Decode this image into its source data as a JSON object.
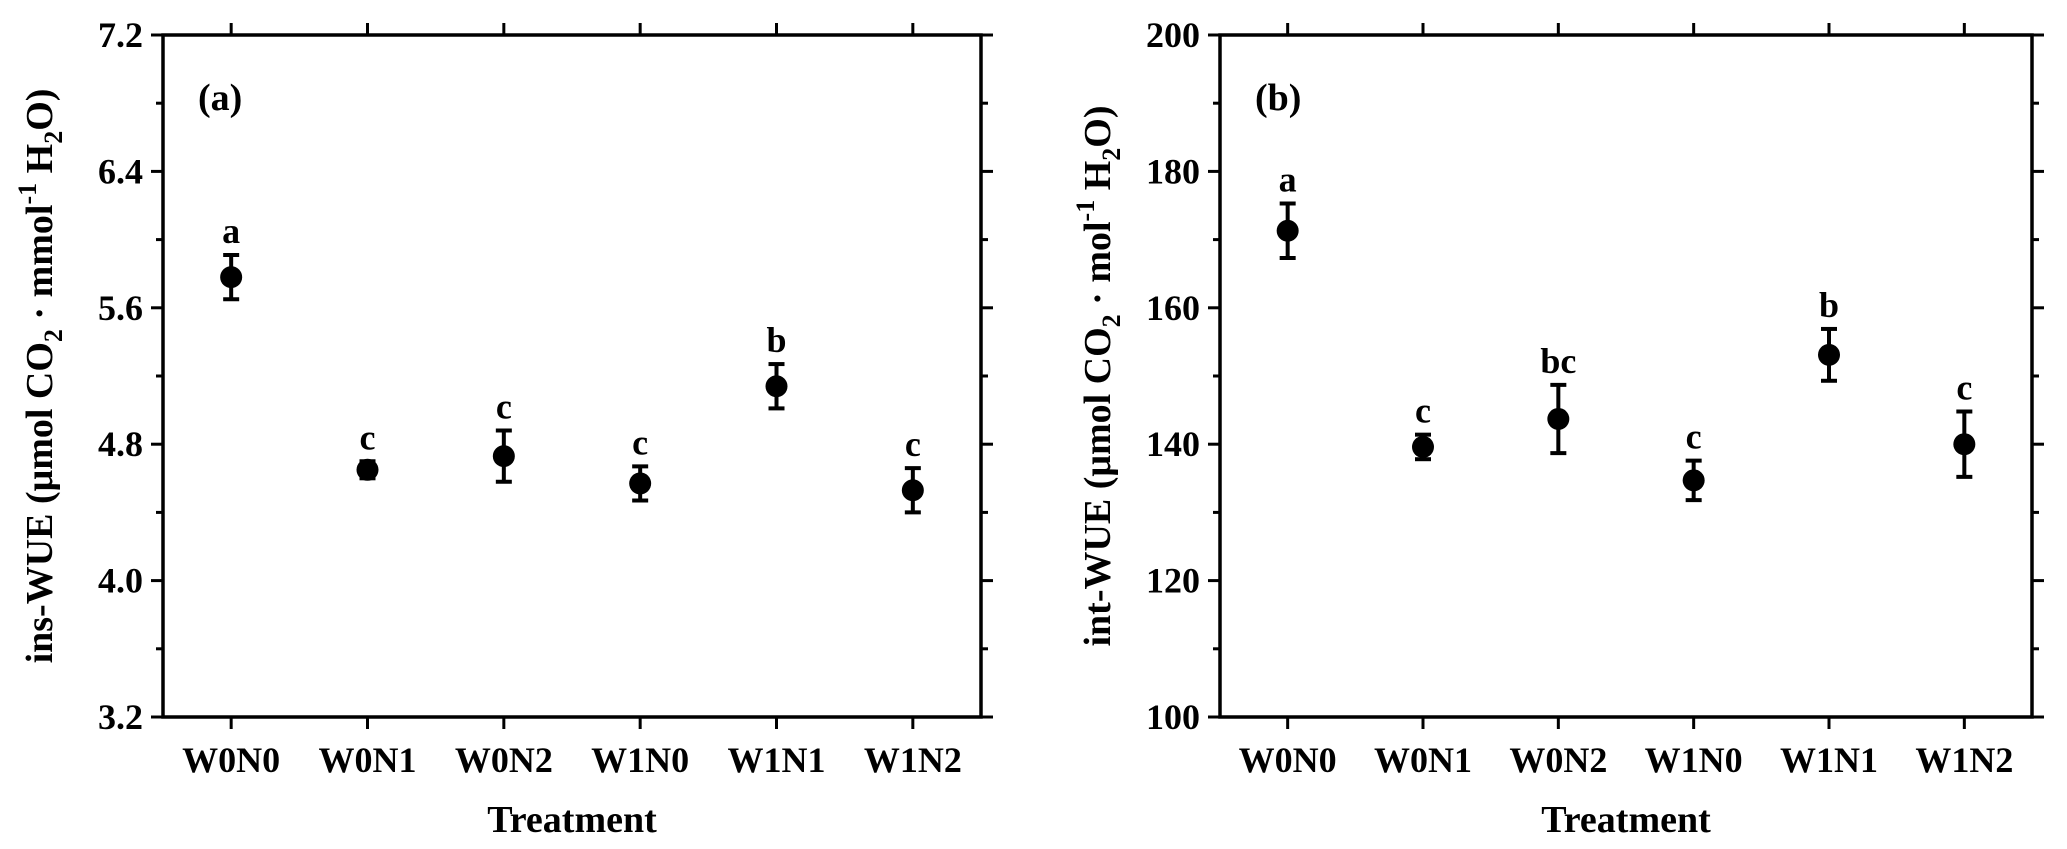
{
  "chart_data": [
    {
      "type": "scatter",
      "panel_label": "(a)",
      "xlabel": "Treatment",
      "ylabel": {
        "base": "ins-WUE (μmol CO",
        "sub1": "2",
        "mid": " · mmol",
        "sup": "-1",
        "mid2": " H",
        "sub2": "2",
        "end": "O)"
      },
      "categories": [
        "W0N0",
        "W0N1",
        "W0N2",
        "W1N0",
        "W1N1",
        "W1N2"
      ],
      "ylim": [
        3.2,
        7.2
      ],
      "yticks": [
        3.2,
        4.0,
        4.8,
        5.6,
        6.4,
        7.2
      ],
      "ytick_labels": [
        "3.2",
        "4.0",
        "4.8",
        "5.6",
        "6.4",
        "7.2"
      ],
      "values": [
        5.78,
        4.65,
        4.73,
        4.57,
        5.14,
        4.53
      ],
      "errors": [
        0.13,
        0.05,
        0.15,
        0.1,
        0.13,
        0.13
      ],
      "letters": [
        "a",
        "c",
        "c",
        "c",
        "b",
        "c"
      ],
      "grid": false,
      "color": "#000000"
    },
    {
      "type": "scatter",
      "panel_label": "(b)",
      "xlabel": "Treatment",
      "ylabel": {
        "base": "int-WUE (μmol CO",
        "sub1": "2",
        "mid": " · mol",
        "sup": "-1",
        "mid2": " H",
        "sub2": "2",
        "end": "O)"
      },
      "categories": [
        "W0N0",
        "W0N1",
        "W0N2",
        "W1N0",
        "W1N1",
        "W1N2"
      ],
      "ylim": [
        100,
        200
      ],
      "yticks": [
        100,
        120,
        140,
        160,
        180,
        200
      ],
      "ytick_labels": [
        "100",
        "120",
        "140",
        "160",
        "180",
        "200"
      ],
      "values": [
        171.3,
        139.6,
        143.7,
        134.7,
        153.1,
        140.0
      ],
      "errors": [
        4.0,
        1.8,
        5.0,
        2.9,
        3.8,
        4.8
      ],
      "letters": [
        "a",
        "c",
        "bc",
        "c",
        "b",
        "c"
      ],
      "grid": false,
      "color": "#000000"
    }
  ]
}
